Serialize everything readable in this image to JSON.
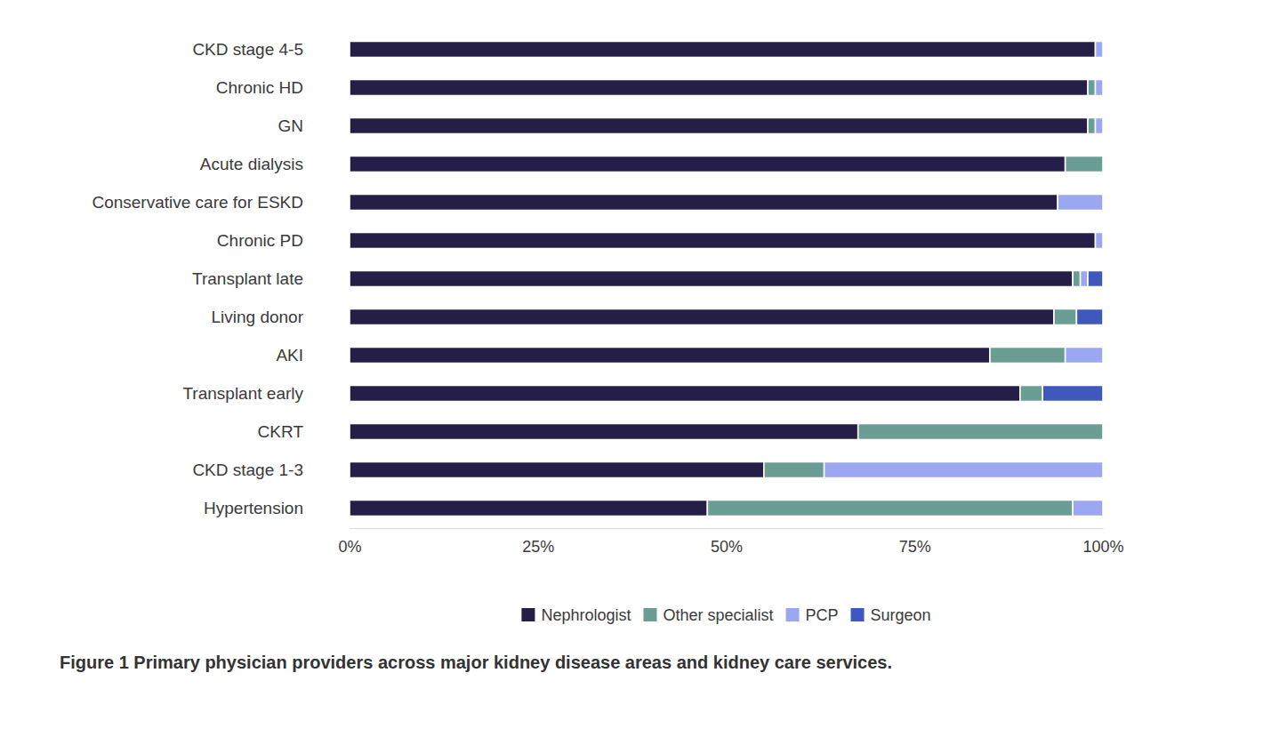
{
  "chart_data": {
    "type": "bar",
    "orientation": "horizontal",
    "stacked": true,
    "grid": false,
    "legend": "bottom",
    "title": "Figure 1 Primary physician providers across major kidney disease areas and kidney care services.",
    "categories": [
      "CKD stage 4-5",
      "Chronic HD",
      "GN",
      "Acute dialysis",
      "Conservative care for ESKD",
      "Chronic PD",
      "Transplant late",
      "Living donor",
      "AKI",
      "Transplant early",
      "CKRT",
      "CKD stage 1-3",
      "Hypertension"
    ],
    "series": [
      {
        "name": "Nephrologist",
        "color": "#251e47",
        "values": [
          99,
          98,
          98,
          95,
          94,
          99,
          96,
          93.5,
          85,
          89,
          67.5,
          55,
          47.5
        ]
      },
      {
        "name": "Other specialist",
        "color": "#6a9e94",
        "values": [
          0,
          1,
          1,
          5,
          0,
          0,
          1,
          3,
          10,
          3,
          32.5,
          8,
          48.5
        ]
      },
      {
        "name": "PCP",
        "color": "#9ba7f0",
        "values": [
          1,
          1,
          1,
          0,
          6,
          1,
          1,
          0,
          5,
          0,
          0,
          37,
          4
        ]
      },
      {
        "name": "Surgeon",
        "color": "#3e58bd",
        "values": [
          0,
          0,
          0,
          0,
          0,
          0,
          2,
          3.5,
          0,
          8,
          0,
          0,
          0
        ]
      }
    ],
    "xlim": [
      0,
      100
    ],
    "xticks": [
      {
        "value": 0,
        "label": "0%"
      },
      {
        "value": 25,
        "label": "25%"
      },
      {
        "value": 50,
        "label": "50%"
      },
      {
        "value": 75,
        "label": "75%"
      },
      {
        "value": 100,
        "label": "100%"
      }
    ]
  }
}
